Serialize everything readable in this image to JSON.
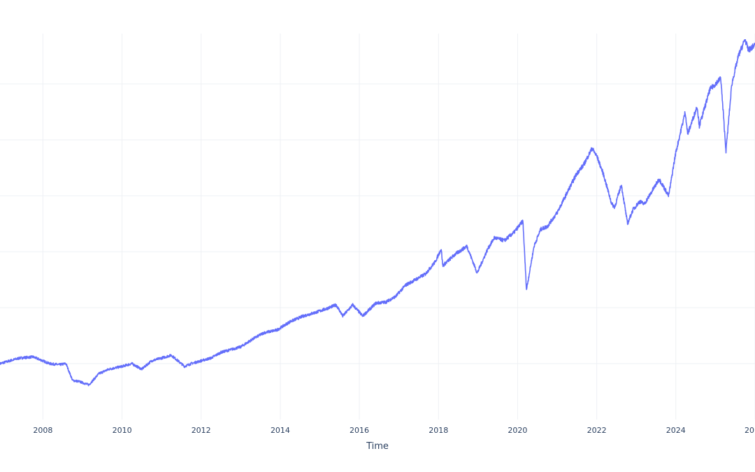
{
  "chart_data": {
    "type": "line",
    "title": "",
    "xlabel": "Time",
    "ylabel": "",
    "x_tick_labels": [
      "2008",
      "2010",
      "2012",
      "2014",
      "2016",
      "2018",
      "2020",
      "2022",
      "2024",
      "20"
    ],
    "x_ticks": [
      "2008-01-01",
      "2010-01-01",
      "2012-01-01",
      "2014-01-01",
      "2016-01-01",
      "2018-01-01",
      "2020-01-01",
      "2022-01-01",
      "2024-01-01",
      "2026-01-01"
    ],
    "xlim": [
      "2006-12-01",
      "2026-01-01"
    ],
    "ylim": [
      1,
      7.9
    ],
    "y_gridlines": [
      2,
      3,
      4,
      5,
      6,
      7
    ],
    "grid": true,
    "legend": "none",
    "line_color": "#636efa",
    "series": [
      {
        "x": [
          "2006-12-01",
          "2007-03-01",
          "2007-06-01",
          "2007-10-01",
          "2008-01-01",
          "2008-03-01",
          "2008-06-01",
          "2008-08-01",
          "2008-10-01",
          "2008-12-01",
          "2009-03-01",
          "2009-06-01",
          "2009-09-01",
          "2010-01-01",
          "2010-04-01",
          "2010-07-01",
          "2010-10-01",
          "2011-01-01",
          "2011-04-01",
          "2011-08-01",
          "2011-10-01",
          "2012-01-01",
          "2012-04-01",
          "2012-07-01",
          "2012-10-01",
          "2013-01-01",
          "2013-05-01",
          "2013-08-01",
          "2013-12-01",
          "2014-04-01",
          "2014-08-01",
          "2014-12-01",
          "2015-03-01",
          "2015-06-01",
          "2015-08-01",
          "2015-11-01",
          "2016-02-01",
          "2016-06-01",
          "2016-09-01",
          "2016-12-01",
          "2017-03-01",
          "2017-06-01",
          "2017-09-01",
          "2017-12-01",
          "2018-01-26",
          "2018-02-09",
          "2018-06-01",
          "2018-09-20",
          "2018-12-24",
          "2019-04-01",
          "2019-06-01",
          "2019-09-01",
          "2019-12-01",
          "2020-02-19",
          "2020-03-23",
          "2020-06-01",
          "2020-08-01",
          "2020-10-01",
          "2021-01-01",
          "2021-04-01",
          "2021-07-01",
          "2021-09-01",
          "2021-11-19",
          "2022-01-03",
          "2022-03-01",
          "2022-05-20",
          "2022-06-16",
          "2022-08-16",
          "2022-10-12",
          "2022-12-01",
          "2023-02-01",
          "2023-03-15",
          "2023-05-01",
          "2023-07-31",
          "2023-10-27",
          "2023-12-29",
          "2024-03-28",
          "2024-04-19",
          "2024-07-16",
          "2024-08-05",
          "2024-11-11",
          "2025-02-19",
          "2025-04-08",
          "2025-06-01",
          "2025-08-01",
          "2025-10-01",
          "2025-11-01",
          "2026-01-01"
        ],
        "values": [
          2.0,
          2.05,
          2.1,
          2.12,
          2.05,
          2.0,
          1.98,
          2.0,
          1.7,
          1.68,
          1.62,
          1.82,
          1.9,
          1.95,
          2.0,
          1.9,
          2.05,
          2.1,
          2.15,
          1.95,
          2.0,
          2.05,
          2.1,
          2.2,
          2.25,
          2.3,
          2.45,
          2.55,
          2.6,
          2.75,
          2.85,
          2.92,
          2.98,
          3.05,
          2.85,
          3.05,
          2.85,
          3.08,
          3.1,
          3.2,
          3.4,
          3.5,
          3.6,
          3.82,
          4.05,
          3.75,
          3.95,
          4.1,
          3.62,
          4.05,
          4.25,
          4.2,
          4.35,
          4.55,
          3.32,
          4.1,
          4.4,
          4.45,
          4.7,
          5.05,
          5.4,
          5.55,
          5.85,
          5.7,
          5.4,
          4.85,
          4.8,
          5.2,
          4.5,
          4.75,
          4.9,
          4.85,
          5.0,
          5.3,
          5.0,
          5.75,
          6.5,
          6.1,
          6.6,
          6.25,
          6.9,
          7.1,
          5.8,
          7.0,
          7.5,
          7.8,
          7.6,
          7.7
        ]
      }
    ]
  }
}
